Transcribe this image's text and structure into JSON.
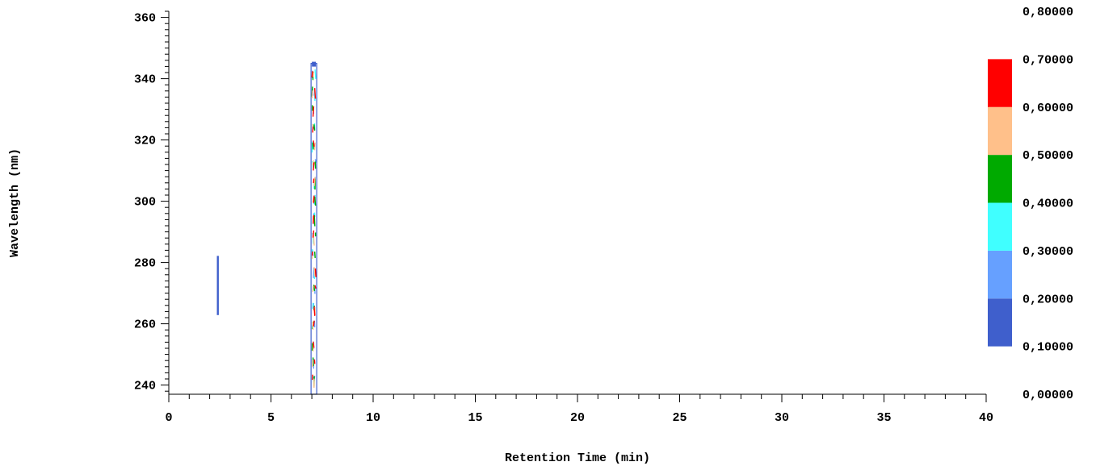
{
  "chart_data": {
    "type": "heatmap",
    "title": "",
    "xlabel": "Retention Time (min)",
    "ylabel": "Wavelength (nm)",
    "xlim": [
      0,
      40
    ],
    "ylim": [
      237,
      362
    ],
    "x_ticks": [
      0,
      5,
      10,
      15,
      20,
      25,
      30,
      35,
      40
    ],
    "x_tick_labels": [
      "0",
      "5",
      "10",
      "15",
      "20",
      "25",
      "30",
      "35",
      "40"
    ],
    "y_ticks": [
      240,
      260,
      280,
      300,
      320,
      340,
      360
    ],
    "y_tick_labels": [
      "240",
      "260",
      "280",
      "300",
      "320",
      "340",
      "360"
    ],
    "colorbar": {
      "levels": [
        0.0,
        0.1,
        0.2,
        0.3,
        0.4,
        0.5,
        0.6,
        0.7,
        0.8
      ],
      "level_labels": [
        "0,00000",
        "0,10000",
        "0,20000",
        "0,30000",
        "0,40000",
        "0,50000",
        "0,60000",
        "0,70000",
        "0,80000"
      ],
      "bands": [
        {
          "from": 0.1,
          "to": 0.2,
          "color": "#3f5fcc"
        },
        {
          "from": 0.2,
          "to": 0.3,
          "color": "#66a0ff"
        },
        {
          "from": 0.3,
          "to": 0.4,
          "color": "#40ffff"
        },
        {
          "from": 0.4,
          "to": 0.5,
          "color": "#00aa00"
        },
        {
          "from": 0.5,
          "to": 0.6,
          "color": "#ffc08a"
        },
        {
          "from": 0.6,
          "to": 0.7,
          "color": "#ff0000"
        }
      ]
    },
    "peaks": [
      {
        "rt": 2.4,
        "wl_min": 263,
        "wl_max": 282,
        "max_level": 0.15
      },
      {
        "rt": 7.1,
        "wl_min": 237,
        "wl_max": 345,
        "max_level": 0.7
      }
    ],
    "grid": false,
    "legend": "right"
  }
}
